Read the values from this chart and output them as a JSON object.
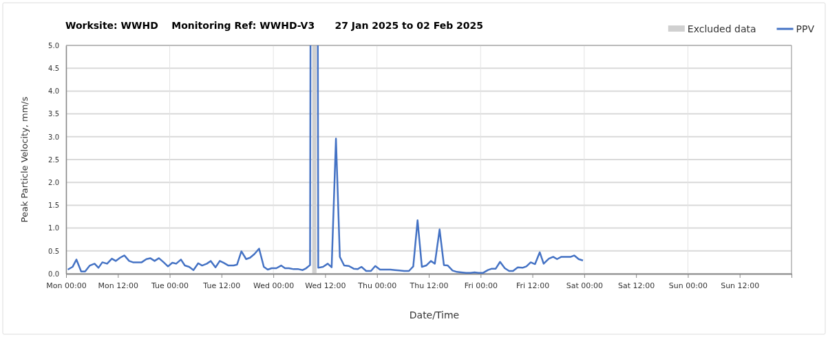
{
  "chart_data": {
    "type": "line",
    "title": "Worksite: WWHD    Monitoring Ref: WWHD-V3      27 Jan 2025 to 02 Feb 2025",
    "xlabel": "Date/Time",
    "ylabel": "Peak Particle Velocity, mm/s",
    "xlim": [
      "2025-01-27T00:00",
      "2025-02-03T00:00"
    ],
    "xticks": [
      {
        "value": "2025-01-27T00:00",
        "label": "Mon 00:00"
      },
      {
        "value": "2025-01-27T12:00",
        "label": "Mon 12:00"
      },
      {
        "value": "2025-01-28T00:00",
        "label": "Tue 00:00"
      },
      {
        "value": "2025-01-28T12:00",
        "label": "Tue 12:00"
      },
      {
        "value": "2025-01-29T00:00",
        "label": "Wed 00:00"
      },
      {
        "value": "2025-01-29T12:00",
        "label": "Wed 12:00"
      },
      {
        "value": "2025-01-30T00:00",
        "label": "Thu 00:00"
      },
      {
        "value": "2025-01-30T12:00",
        "label": "Thu 12:00"
      },
      {
        "value": "2025-01-31T00:00",
        "label": "Fri 00:00"
      },
      {
        "value": "2025-01-31T12:00",
        "label": "Fri 12:00"
      },
      {
        "value": "2025-02-01T00:00",
        "label": "Sat 00:00"
      },
      {
        "value": "2025-02-01T12:00",
        "label": "Sat 12:00"
      },
      {
        "value": "2025-02-02T00:00",
        "label": "Sun 00:00"
      },
      {
        "value": "2025-02-02T12:00",
        "label": "Sun 12:00"
      },
      {
        "value": "2025-02-03T00:00",
        "label": null
      }
    ],
    "ylim": [
      0,
      5
    ],
    "yticks": [
      {
        "value": 0,
        "label": "0.0"
      },
      {
        "value": 0.5,
        "label": "0.5"
      },
      {
        "value": 1,
        "label": "1.0"
      },
      {
        "value": 1.5,
        "label": "1.5"
      },
      {
        "value": 2,
        "label": "2.0"
      },
      {
        "value": 2.5,
        "label": "2.5"
      },
      {
        "value": 3,
        "label": "3.0"
      },
      {
        "value": 3.5,
        "label": "3.5"
      },
      {
        "value": 4,
        "label": "4.0"
      },
      {
        "value": 4.5,
        "label": "4.5"
      },
      {
        "value": 5,
        "label": "5.0"
      }
    ],
    "grid": true,
    "legend": "top right",
    "line_style": "solid",
    "bands": [
      {
        "axis": "x",
        "from": "2025-01-29T09:00",
        "to": "2025-01-29T10:00",
        "label": "Excluded data",
        "color": "#d0d0d0"
      }
    ],
    "series": [
      {
        "name": "PPV",
        "color": "#4472c4",
        "x": [
          "2025-01-27T00:24",
          "2025-01-27T01:30",
          "2025-01-27T02:24",
          "2025-01-27T03:30",
          "2025-01-27T04:24",
          "2025-01-27T05:30",
          "2025-01-27T06:36",
          "2025-01-27T07:30",
          "2025-01-27T08:24",
          "2025-01-27T09:30",
          "2025-01-27T10:36",
          "2025-01-27T11:30",
          "2025-01-27T12:30",
          "2025-01-27T13:30",
          "2025-01-27T14:36",
          "2025-01-27T15:30",
          "2025-01-27T17:30",
          "2025-01-27T18:36",
          "2025-01-27T19:30",
          "2025-01-27T20:30",
          "2025-01-27T21:30",
          "2025-01-27T22:36",
          "2025-01-27T23:36",
          "2025-01-28T00:36",
          "2025-01-28T01:30",
          "2025-01-28T02:36",
          "2025-01-28T03:30",
          "2025-01-28T04:30",
          "2025-01-28T05:30",
          "2025-01-28T06:36",
          "2025-01-28T07:30",
          "2025-01-28T08:36",
          "2025-01-28T09:30",
          "2025-01-28T10:36",
          "2025-01-28T11:36",
          "2025-01-28T12:30",
          "2025-01-28T13:36",
          "2025-01-28T14:48",
          "2025-01-28T15:36",
          "2025-01-28T16:36",
          "2025-01-28T17:42",
          "2025-01-28T18:36",
          "2025-01-28T19:36",
          "2025-01-28T20:42",
          "2025-01-28T21:48",
          "2025-01-28T22:42",
          "2025-01-28T23:36",
          "2025-01-29T00:42",
          "2025-01-29T01:48",
          "2025-01-29T02:42",
          "2025-01-29T03:36",
          "2025-01-29T04:42",
          "2025-01-29T05:48",
          "2025-01-29T06:48",
          "2025-01-29T07:36",
          "2025-01-29T08:30",
          "2025-01-29T08:36",
          "2025-01-29T09:30",
          "2025-01-29T10:18",
          "2025-01-29T10:24",
          "2025-01-29T11:30",
          "2025-01-29T12:36",
          "2025-01-29T13:30",
          "2025-01-29T14:30",
          "2025-01-29T15:24",
          "2025-01-29T16:24",
          "2025-01-29T17:30",
          "2025-01-29T18:36",
          "2025-01-29T19:30",
          "2025-01-29T20:24",
          "2025-01-29T21:30",
          "2025-01-29T22:36",
          "2025-01-29T23:36",
          "2025-01-30T00:42",
          "2025-01-30T01:48",
          "2025-01-30T03:06",
          "2025-01-30T04:12",
          "2025-01-30T05:12",
          "2025-01-30T06:18",
          "2025-01-30T07:24",
          "2025-01-30T08:24",
          "2025-01-30T09:24",
          "2025-01-30T10:24",
          "2025-01-30T11:24",
          "2025-01-30T12:30",
          "2025-01-30T13:24",
          "2025-01-30T14:30",
          "2025-01-30T15:30",
          "2025-01-30T16:24",
          "2025-01-30T17:30",
          "2025-01-30T18:30",
          "2025-01-30T19:30",
          "2025-01-30T20:36",
          "2025-01-30T21:42",
          "2025-01-30T22:36",
          "2025-01-30T23:30",
          "2025-01-31T00:36",
          "2025-01-31T01:42",
          "2025-01-31T02:36",
          "2025-01-31T03:30",
          "2025-01-31T04:30",
          "2025-01-31T05:36",
          "2025-01-31T06:36",
          "2025-01-31T07:30",
          "2025-01-31T08:36",
          "2025-01-31T09:42",
          "2025-01-31T10:36",
          "2025-01-31T11:36",
          "2025-01-31T12:36",
          "2025-01-31T13:42",
          "2025-01-31T14:36",
          "2025-01-31T15:48",
          "2025-01-31T16:48",
          "2025-01-31T17:42",
          "2025-01-31T18:42",
          "2025-01-31T19:48",
          "2025-01-31T20:54",
          "2025-01-31T21:42",
          "2025-01-31T22:42",
          "2025-01-31T23:42"
        ],
        "values": [
          0.09,
          0.15,
          0.31,
          0.05,
          0.05,
          0.18,
          0.22,
          0.13,
          0.25,
          0.22,
          0.33,
          0.28,
          0.35,
          0.4,
          0.28,
          0.25,
          0.25,
          0.32,
          0.34,
          0.28,
          0.34,
          0.25,
          0.16,
          0.24,
          0.22,
          0.31,
          0.18,
          0.15,
          0.08,
          0.23,
          0.18,
          0.22,
          0.28,
          0.14,
          0.28,
          0.24,
          0.18,
          0.18,
          0.2,
          0.49,
          0.32,
          0.35,
          0.43,
          0.55,
          0.15,
          0.09,
          0.12,
          0.12,
          0.18,
          0.12,
          0.12,
          0.1,
          0.1,
          0.08,
          0.12,
          0.19,
          5.0,
          null,
          5.0,
          0.13,
          0.15,
          0.22,
          0.14,
          2.96,
          0.37,
          0.18,
          0.17,
          0.11,
          0.1,
          0.15,
          0.06,
          0.06,
          0.17,
          0.09,
          0.09,
          0.09,
          0.08,
          0.07,
          0.06,
          0.06,
          0.16,
          1.17,
          0.15,
          0.18,
          0.28,
          0.22,
          0.97,
          0.19,
          0.18,
          0.07,
          0.04,
          0.03,
          0.02,
          0.02,
          0.03,
          0.02,
          0.02,
          0.08,
          0.11,
          0.11,
          0.26,
          0.12,
          0.06,
          0.06,
          0.14,
          0.13,
          0.16,
          0.25,
          0.21,
          0.47,
          0.22,
          0.33,
          0.37,
          0.32,
          0.37,
          0.37,
          0.37,
          0.4,
          0.32,
          0.29
        ]
      }
    ]
  }
}
